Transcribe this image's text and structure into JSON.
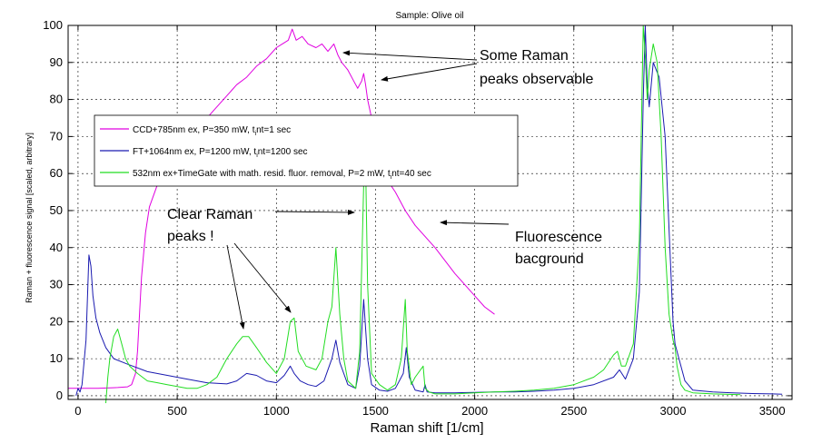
{
  "chart_data": {
    "type": "line",
    "title": "Sample: Olive oil",
    "xlabel": "Raman shift [1/cm]",
    "ylabel": "Raman + fluorescence signal [scaled, arbitrary]",
    "xlim": [
      -50,
      3600
    ],
    "ylim": [
      -1,
      100
    ],
    "xticks": [
      0,
      500,
      1000,
      1500,
      2000,
      2500,
      3000,
      3500
    ],
    "yticks": [
      0,
      10,
      20,
      30,
      40,
      50,
      60,
      70,
      80,
      90,
      100
    ],
    "grid": true,
    "legend_position": "upper-left",
    "series": [
      {
        "name": "CCD+785nm ex, P=350 mW, t",
        "name_sub": "i",
        "name_tail": "nt=1 sec",
        "color": "#e000e0",
        "x": [
          -50,
          100,
          200,
          250,
          270,
          290,
          300,
          310,
          320,
          340,
          360,
          400,
          450,
          500,
          550,
          600,
          700,
          800,
          850,
          900,
          950,
          1000,
          1030,
          1060,
          1080,
          1100,
          1130,
          1160,
          1200,
          1230,
          1260,
          1290,
          1310,
          1330,
          1360,
          1390,
          1410,
          1430,
          1440,
          1450,
          1460,
          1480,
          1500,
          1520,
          1550,
          1600,
          1650,
          1700,
          1800,
          1900,
          2000,
          2050,
          2100
        ],
        "y": [
          2,
          2,
          2.2,
          2.4,
          3,
          6,
          12,
          22,
          32,
          44,
          51,
          57,
          61,
          65,
          69,
          72,
          78,
          84,
          86,
          89,
          91,
          94,
          95,
          96,
          99,
          96,
          97,
          95,
          94,
          95,
          93,
          95,
          92,
          90,
          88,
          85,
          83,
          85,
          87,
          84,
          80,
          75,
          71,
          66,
          59,
          55,
          50,
          46,
          40,
          33,
          27,
          24,
          22
        ]
      },
      {
        "name": "FT+1064nm ex, P=1200 mW, t",
        "name_sub": "i",
        "name_tail": "nt=1200 sec",
        "color": "#1a1ab0",
        "x": [
          -10,
          0,
          10,
          20,
          40,
          55,
          65,
          75,
          90,
          110,
          140,
          180,
          250,
          350,
          450,
          550,
          650,
          750,
          800,
          850,
          900,
          950,
          1000,
          1040,
          1070,
          1090,
          1120,
          1160,
          1200,
          1240,
          1280,
          1300,
          1320,
          1360,
          1400,
          1420,
          1440,
          1460,
          1480,
          1520,
          1560,
          1600,
          1640,
          1655,
          1670,
          1700,
          1740,
          1750,
          1760,
          1800,
          1900,
          2000,
          2100,
          2200,
          2300,
          2400,
          2500,
          2600,
          2700,
          2730,
          2760,
          2800,
          2830,
          2850,
          2860,
          2870,
          2880,
          2900,
          2930,
          2960,
          2980,
          3000,
          3010,
          3030,
          3060,
          3100,
          3200,
          3300,
          3400,
          3500,
          3550
        ],
        "y": [
          0,
          2,
          1,
          3,
          15,
          38,
          35,
          27,
          21,
          17,
          13,
          10,
          8.5,
          6.5,
          5.5,
          4.5,
          3.5,
          3.2,
          4,
          6,
          5.5,
          4,
          3.5,
          5.5,
          8,
          6,
          4,
          3,
          2.5,
          4,
          10,
          15,
          9,
          3,
          2,
          8,
          26,
          10,
          3,
          1.5,
          1.2,
          2,
          6,
          13,
          5,
          1.5,
          1,
          3,
          1,
          0.8,
          0.8,
          0.9,
          1,
          1,
          1.2,
          1.5,
          2,
          3,
          5,
          7,
          4.5,
          10,
          28,
          80,
          100,
          84,
          78,
          90,
          86,
          70,
          45,
          20,
          14,
          10,
          4,
          1.5,
          1,
          0.8,
          0.6,
          0.5,
          0.4
        ]
      },
      {
        "name": "532nm ex+TimeGate with math. resid. fluor. removal, P=2 mW, t",
        "name_sub": "i",
        "name_tail": "nt=40 sec",
        "color": "#22dd22",
        "x": [
          140,
          150,
          160,
          180,
          200,
          220,
          240,
          260,
          300,
          350,
          400,
          450,
          500,
          550,
          600,
          650,
          700,
          750,
          800,
          830,
          860,
          900,
          950,
          1000,
          1040,
          1070,
          1090,
          1110,
          1150,
          1200,
          1230,
          1260,
          1280,
          1300,
          1320,
          1340,
          1360,
          1400,
          1420,
          1440,
          1450,
          1460,
          1480,
          1520,
          1560,
          1600,
          1630,
          1650,
          1660,
          1680,
          1700,
          1740,
          1750,
          1770,
          1800,
          1900,
          2000,
          2100,
          2200,
          2300,
          2400,
          2500,
          2600,
          2650,
          2700,
          2720,
          2740,
          2760,
          2800,
          2830,
          2850,
          2860,
          2870,
          2880,
          2900,
          2920,
          2940,
          2960,
          2980,
          3000,
          3010,
          3020,
          3040,
          3060,
          3100,
          3200,
          3340
        ],
        "y": [
          -2,
          5,
          10,
          16,
          18,
          14,
          10,
          8,
          6,
          4,
          3.5,
          3,
          2.5,
          2,
          2,
          3,
          5,
          10,
          14,
          16,
          16,
          13,
          9,
          6,
          10,
          20,
          21,
          12,
          8,
          7,
          10,
          20,
          24,
          40,
          22,
          10,
          4,
          2,
          12,
          57,
          63,
          30,
          6,
          3,
          1.5,
          3,
          10,
          26,
          12,
          3,
          5,
          8,
          2,
          1,
          0.5,
          0.5,
          0.8,
          1,
          1.2,
          1.5,
          2,
          3,
          5,
          7,
          11,
          12,
          8,
          8,
          14,
          42,
          100,
          92,
          80,
          88,
          95,
          90,
          70,
          40,
          22,
          15,
          13,
          8,
          3,
          1.5,
          0.8,
          0.5,
          0.3
        ]
      }
    ],
    "annotations": {
      "raman_observable": [
        "Some Raman",
        "peaks observable"
      ],
      "clear_peaks": [
        "Clear Raman",
        "peaks !"
      ],
      "fluorescence": [
        "Fluorescence",
        "bacground"
      ]
    }
  }
}
